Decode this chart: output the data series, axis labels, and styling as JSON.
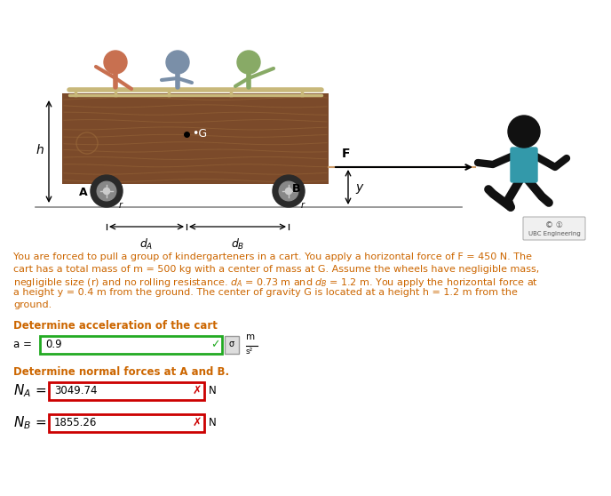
{
  "bg_color": "#ffffff",
  "text_color": "#cc6600",
  "body_lines": [
    "You are forced to pull a group of kindergarteners in a cart. You apply a horizontal force of F = 450 N. The",
    "cart has a total mass of m = 500 kg with a center of mass at G. Assume the wheels have negligible mass,",
    "negligible size (r) and no rolling resistance. $d_A$ = 0.73 m and $d_B$ = 1.2 m. You apply the horizontal force at",
    "a height y = 0.4 m from the ground. The center of gravity G is located at a height h = 1.2 m from the",
    "ground."
  ],
  "question1": "Determine acceleration of the cart",
  "value_a": "0.9",
  "green_color": "#22aa22",
  "question2": "Determine normal forces at A and B.",
  "value_NA": "3049.74",
  "value_NB": "1855.26",
  "red_color": "#cc0000",
  "cart_brown": "#7b4a2a",
  "cart_brown_light": "#9b6a3a",
  "rail_color": "#c8b87a",
  "wheel_dark": "#2a2a2a",
  "wheel_mid": "#888888",
  "wheel_light": "#cccccc",
  "kid_colors": [
    "#c87050",
    "#8899aa",
    "#88aa66"
  ],
  "person_teal": "#3399aa",
  "person_black": "#111111",
  "ground_color": "#888888",
  "arrow_color": "#000000",
  "dim_line_color": "#000000"
}
